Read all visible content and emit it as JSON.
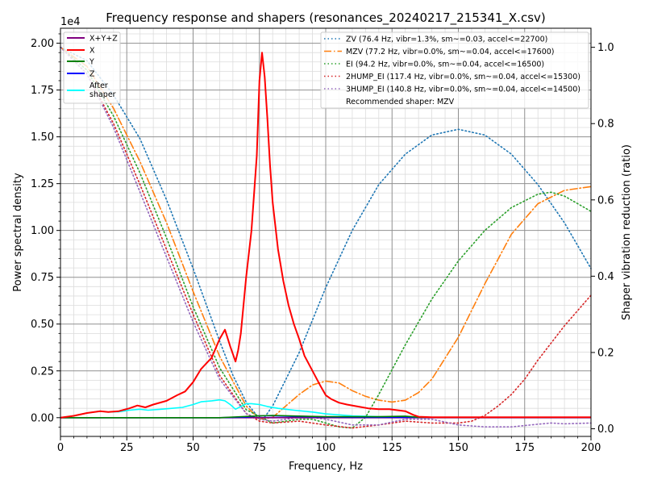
{
  "chart_data": {
    "type": "line",
    "title": "Frequency response and shapers (resonances_20240217_215341_X.csv)",
    "xlabel": "Frequency, Hz",
    "ylabel": "Power spectral density",
    "y2label": "Shaper vibration reduction (ratio)",
    "offset_text": "1e4",
    "xlim": [
      0,
      200
    ],
    "ylim": [
      -0.1,
      2.08
    ],
    "y2lim": [
      -0.02,
      1.05
    ],
    "x_ticks": [
      "0",
      "25",
      "50",
      "75",
      "100",
      "125",
      "150",
      "175",
      "200"
    ],
    "y_ticks": [
      "0.00",
      "0.25",
      "0.50",
      "0.75",
      "1.00",
      "1.25",
      "1.50",
      "1.75",
      "2.00"
    ],
    "y2_ticks": [
      "0.0",
      "0.2",
      "0.4",
      "0.6",
      "0.8",
      "1.0"
    ],
    "grid": true,
    "legend_left_placement": "upper-left",
    "legend_right_placement": "upper-right",
    "recommended_note": "Recommended shaper: MZV",
    "psd_series": [
      {
        "name": "X+Y+Z",
        "color": "#800080",
        "x": [
          0,
          200
        ],
        "y": [
          0,
          0
        ]
      },
      {
        "name": "X",
        "color": "#ff0000",
        "x": [
          0,
          5,
          10,
          15,
          18,
          22,
          26,
          29,
          32,
          35,
          40,
          44,
          47,
          50,
          53,
          57,
          60,
          62,
          64,
          66,
          67,
          68,
          69,
          70,
          72,
          74,
          75,
          76,
          77,
          78,
          79,
          80,
          82,
          84,
          86,
          88,
          90,
          92,
          95,
          98,
          100,
          102,
          105,
          108,
          112,
          116,
          120,
          124,
          127,
          130,
          133,
          135,
          140,
          150,
          160,
          170,
          180,
          190,
          200
        ],
        "y": [
          0,
          0.01,
          0.025,
          0.035,
          0.03,
          0.035,
          0.05,
          0.065,
          0.055,
          0.07,
          0.09,
          0.12,
          0.14,
          0.19,
          0.26,
          0.32,
          0.42,
          0.47,
          0.38,
          0.3,
          0.36,
          0.45,
          0.6,
          0.75,
          1.0,
          1.4,
          1.8,
          1.95,
          1.82,
          1.6,
          1.35,
          1.15,
          0.9,
          0.73,
          0.6,
          0.5,
          0.42,
          0.33,
          0.25,
          0.17,
          0.12,
          0.1,
          0.08,
          0.07,
          0.06,
          0.05,
          0.045,
          0.045,
          0.04,
          0.035,
          0.015,
          0.005,
          0.002,
          0.002,
          0.002,
          0.002,
          0.002,
          0.002,
          0.002
        ]
      },
      {
        "name": "Y",
        "color": "#008000",
        "x": [
          0,
          60,
          75,
          80,
          100,
          120,
          130,
          135,
          200
        ],
        "y": [
          0,
          0,
          0.01,
          0.012,
          0.005,
          0.005,
          0.008,
          0.002,
          0.002
        ]
      },
      {
        "name": "Z",
        "color": "#0000ff",
        "x": [
          0,
          60,
          70,
          75,
          80,
          90,
          100,
          110,
          200
        ],
        "y": [
          0,
          0,
          0.003,
          0.01,
          0.01,
          0.006,
          0.004,
          0.002,
          0.001
        ]
      },
      {
        "name": "After\nshaper",
        "color": "#00ffff",
        "x": [
          0,
          5,
          10,
          15,
          18,
          22,
          26,
          30,
          33,
          38,
          42,
          46,
          50,
          53,
          57,
          60,
          62,
          64,
          66,
          68,
          70,
          72,
          75,
          78,
          82,
          88,
          95,
          100,
          110,
          120,
          130,
          135,
          150,
          200
        ],
        "y": [
          0,
          0.01,
          0.025,
          0.035,
          0.03,
          0.032,
          0.04,
          0.045,
          0.04,
          0.045,
          0.05,
          0.055,
          0.07,
          0.085,
          0.09,
          0.095,
          0.09,
          0.07,
          0.045,
          0.06,
          0.075,
          0.075,
          0.07,
          0.06,
          0.05,
          0.04,
          0.03,
          0.02,
          0.01,
          0.005,
          0.003,
          0.002,
          0.001,
          0.001
        ]
      }
    ],
    "shaper_series": [
      {
        "name": "ZV (76.4 Hz, vibr=1.3%, sm~=0.03, accel<=22700)",
        "color": "#1f77b4",
        "dash": "dotted",
        "x": [
          0,
          10,
          20,
          30,
          40,
          50,
          60,
          65,
          70,
          74,
          76.4,
          80,
          90,
          100,
          110,
          120,
          130,
          140,
          150,
          160,
          170,
          180,
          190,
          200
        ],
        "y": [
          1.0,
          0.965,
          0.875,
          0.76,
          0.6,
          0.42,
          0.23,
          0.14,
          0.07,
          0.035,
          0.025,
          0.06,
          0.2,
          0.37,
          0.52,
          0.64,
          0.72,
          0.77,
          0.785,
          0.77,
          0.72,
          0.64,
          0.54,
          0.42
        ]
      },
      {
        "name": "MZV (77.2 Hz, vibr=0.0%, sm~=0.04, accel<=17600)",
        "color": "#ff7f0e",
        "dash": "dashdot",
        "x": [
          0,
          10,
          20,
          30,
          40,
          50,
          60,
          70,
          75,
          80,
          85,
          90,
          95,
          100,
          105,
          110,
          115,
          120,
          125,
          130,
          135,
          140,
          150,
          160,
          170,
          180,
          190,
          200
        ],
        "y": [
          1.0,
          0.95,
          0.84,
          0.7,
          0.54,
          0.36,
          0.19,
          0.06,
          0.025,
          0.03,
          0.06,
          0.09,
          0.115,
          0.125,
          0.12,
          0.1,
          0.085,
          0.075,
          0.07,
          0.075,
          0.095,
          0.13,
          0.24,
          0.38,
          0.51,
          0.59,
          0.625,
          0.635
        ]
      },
      {
        "name": "EI (94.2 Hz, vibr=0.0%, sm~=0.04, accel<=16500)",
        "color": "#2ca02c",
        "dash": "dotted",
        "x": [
          0,
          10,
          20,
          30,
          40,
          50,
          60,
          70,
          80,
          90,
          95,
          100,
          105,
          110,
          115,
          120,
          130,
          140,
          150,
          160,
          170,
          180,
          185,
          190,
          200
        ],
        "y": [
          1.0,
          0.94,
          0.82,
          0.67,
          0.5,
          0.32,
          0.16,
          0.05,
          0.015,
          0.025,
          0.025,
          0.015,
          0.005,
          0.002,
          0.03,
          0.09,
          0.22,
          0.34,
          0.44,
          0.52,
          0.58,
          0.615,
          0.62,
          0.61,
          0.57
        ]
      },
      {
        "name": "2HUMP_EI (117.4 Hz, vibr=0.0%, sm~=0.04, accel<=15300)",
        "color": "#d62728",
        "dash": "dotted",
        "x": [
          0,
          10,
          20,
          30,
          40,
          50,
          60,
          70,
          75,
          80,
          90,
          100,
          110,
          120,
          130,
          140,
          150,
          155,
          160,
          165,
          170,
          175,
          180,
          190,
          200
        ],
        "y": [
          1.0,
          0.93,
          0.8,
          0.64,
          0.47,
          0.3,
          0.14,
          0.04,
          0.02,
          0.015,
          0.02,
          0.01,
          0.002,
          0.01,
          0.02,
          0.015,
          0.015,
          0.02,
          0.035,
          0.06,
          0.09,
          0.13,
          0.18,
          0.27,
          0.35
        ]
      },
      {
        "name": "3HUMP_EI (140.8 Hz, vibr=0.0%, sm~=0.04, accel<=14500)",
        "color": "#9467bd",
        "dash": "dotted",
        "x": [
          0,
          10,
          20,
          30,
          40,
          50,
          60,
          70,
          75,
          80,
          85,
          90,
          95,
          100,
          110,
          120,
          130,
          140,
          150,
          160,
          170,
          180,
          185,
          190,
          200
        ],
        "y": [
          1.0,
          0.93,
          0.79,
          0.62,
          0.45,
          0.28,
          0.13,
          0.04,
          0.025,
          0.02,
          0.025,
          0.03,
          0.03,
          0.025,
          0.01,
          0.01,
          0.025,
          0.025,
          0.01,
          0.005,
          0.005,
          0.012,
          0.015,
          0.013,
          0.015
        ]
      }
    ]
  }
}
